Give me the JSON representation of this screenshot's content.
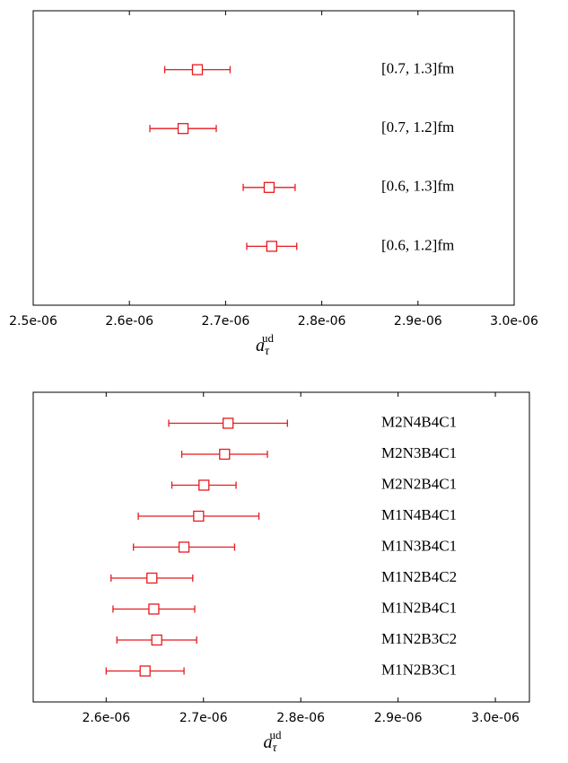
{
  "chart_data": [
    {
      "type": "errorbar",
      "color": "#e8191e",
      "categories": [
        "[0.7, 1.3]fm",
        "[0.7, 1.2]fm",
        "[0.6, 1.3]fm",
        "[0.6, 1.2]fm"
      ],
      "values": [
        2.6707e-06,
        2.6558e-06,
        2.7453e-06,
        2.748e-06
      ],
      "errors": [
        3.4e-08,
        3.45e-08,
        2.7e-08,
        2.6e-08
      ],
      "xlim": [
        2.5e-06,
        3e-06
      ],
      "xticks": [
        {
          "value": 2.5e-06,
          "label": "2.5e-06"
        },
        {
          "value": 2.6e-06,
          "label": "2.6e-06"
        },
        {
          "value": 2.7e-06,
          "label": "2.7e-06"
        },
        {
          "value": 2.8e-06,
          "label": "2.8e-06"
        },
        {
          "value": 2.9e-06,
          "label": "2.9e-06"
        },
        {
          "value": 3e-06,
          "label": "3.0e-06"
        }
      ],
      "xlabel": {
        "symbol": "a",
        "subscript": "τ",
        "superscript": "ud"
      }
    },
    {
      "type": "errorbar",
      "color": "#e8191e",
      "categories": [
        "M2N4B4C1",
        "M2N3B4C1",
        "M2N2B4C1",
        "M1N4B4C1",
        "M1N3B4C1",
        "M1N2B4C2",
        "M1N2B4C1",
        "M1N2B3C2",
        "M1N2B3C1"
      ],
      "values": [
        2.7253e-06,
        2.7217e-06,
        2.7005e-06,
        2.695e-06,
        2.68e-06,
        2.647e-06,
        2.649e-06,
        2.652e-06,
        2.64e-06
      ],
      "errors": [
        6.1e-08,
        4.4e-08,
        3.3e-08,
        6.2e-08,
        5.2e-08,
        4.2e-08,
        4.2e-08,
        4.1e-08,
        4e-08
      ],
      "xlim": [
        2.525e-06,
        3.035e-06
      ],
      "xticks": [
        {
          "value": 2.6e-06,
          "label": "2.6e-06"
        },
        {
          "value": 2.7e-06,
          "label": "2.7e-06"
        },
        {
          "value": 2.8e-06,
          "label": "2.8e-06"
        },
        {
          "value": 2.9e-06,
          "label": "2.9e-06"
        },
        {
          "value": 3e-06,
          "label": "3.0e-06"
        }
      ],
      "xlabel": {
        "symbol": "a",
        "subscript": "τ",
        "superscript": "ud"
      }
    }
  ]
}
